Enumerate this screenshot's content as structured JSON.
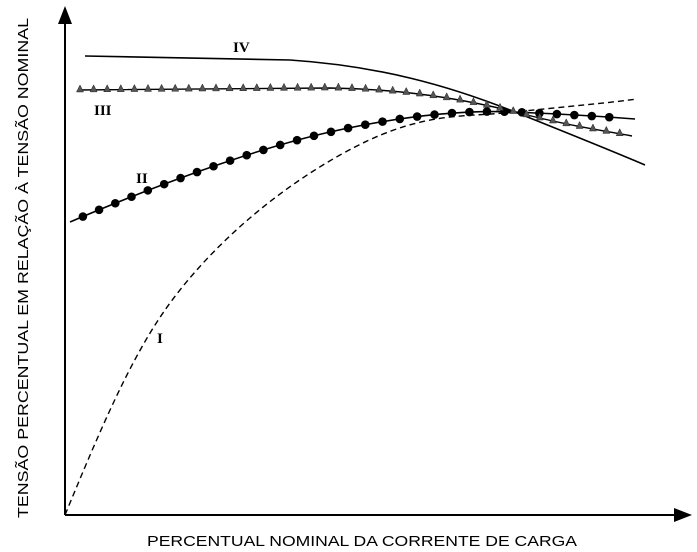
{
  "axes": {
    "x_label": "PERCENTUAL NOMINAL DA CORRENTE DE CARGA",
    "y_label": "TENSÃO PERCENTUAL EM RELAÇÃO À TENSÃO NOMINAL"
  },
  "curves": [
    {
      "label": "I"
    },
    {
      "label": "II"
    },
    {
      "label": "III"
    },
    {
      "label": "IV"
    }
  ]
}
